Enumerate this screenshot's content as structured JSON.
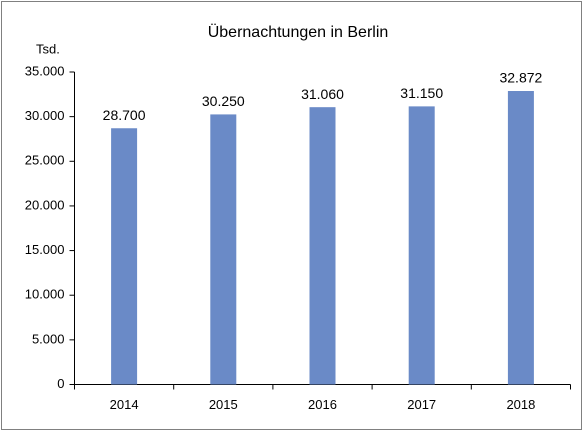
{
  "chart_data": {
    "type": "bar",
    "title": "Übernachtungen in Berlin",
    "y_label": "Tsd.",
    "categories": [
      "2014",
      "2015",
      "2016",
      "2017",
      "2018"
    ],
    "values": [
      28700,
      30250,
      31060,
      31150,
      32872
    ],
    "value_labels": [
      "28.700",
      "30.250",
      "31.060",
      "31.150",
      "32.872"
    ],
    "color": "#6a8ac7",
    "ylim": [
      0,
      35000
    ],
    "yticks": [
      0,
      {
        "value": 5000,
        "label": "5.000"
      },
      {
        "value": 10000,
        "label": "10.000"
      },
      {
        "value": 15000,
        "label": "15.000"
      },
      {
        "value": 20000,
        "label": "20.000"
      },
      {
        "value": 25000,
        "label": "25.000"
      },
      {
        "value": 30000,
        "label": "30.000"
      },
      {
        "value": 35000,
        "label": "35.000"
      }
    ],
    "grid": false
  }
}
